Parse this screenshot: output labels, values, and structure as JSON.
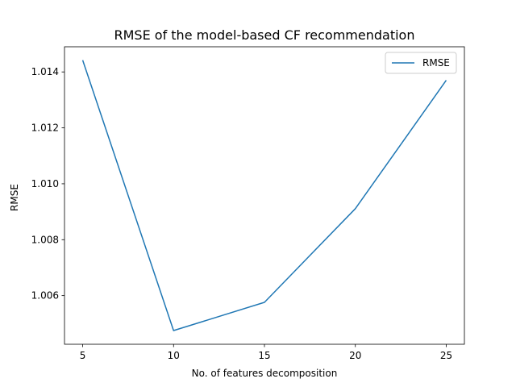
{
  "chart_data": {
    "type": "line",
    "title": "RMSE of the model-based CF recommendation",
    "xlabel": "No. of features decomposition",
    "ylabel": "RMSE",
    "x": [
      5,
      10,
      15,
      20,
      25
    ],
    "series": [
      {
        "name": "RMSE",
        "values": [
          1.01442,
          1.00475,
          1.00576,
          1.00911,
          1.0137
        ],
        "color": "#1f77b4"
      }
    ],
    "xticks": [
      "5",
      "10",
      "15",
      "20",
      "25"
    ],
    "yticks": [
      "1.006",
      "1.008",
      "1.010",
      "1.012",
      "1.014"
    ],
    "xlim": [
      4,
      26
    ],
    "ylim": [
      1.00426,
      1.0149
    ],
    "grid": false,
    "legend": "top-right"
  }
}
